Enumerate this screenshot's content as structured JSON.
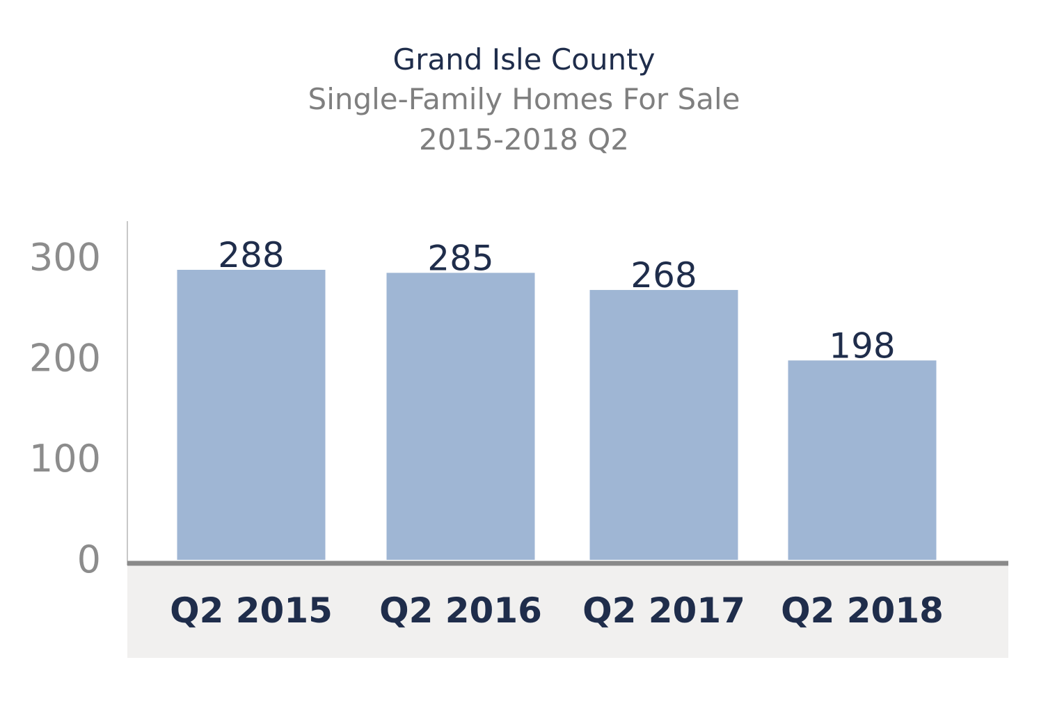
{
  "colors": {
    "bar": "#9fb6d4",
    "axis": "#8a8a8a",
    "category_band": "#f1f0ef",
    "title": "#1f2d4b",
    "subtitle": "#7f7f7f",
    "tick": "#8c8c8c",
    "label": "#1f2d4b"
  },
  "chart_data": {
    "type": "bar",
    "title": "Grand Isle County",
    "subtitle": [
      "Single-Family Homes For Sale",
      "2015-2018 Q2"
    ],
    "categories": [
      "Q2 2015",
      "Q2 2016",
      "Q2 2017",
      "Q2 2018"
    ],
    "values": [
      288,
      285,
      268,
      198
    ],
    "data_labels": [
      "288",
      "285",
      "268",
      "198"
    ],
    "ylim": [
      0,
      300
    ],
    "yticks": [
      "0",
      "100",
      "200",
      "300"
    ],
    "grid": false,
    "legend": "none",
    "xlabel": "",
    "ylabel": ""
  }
}
